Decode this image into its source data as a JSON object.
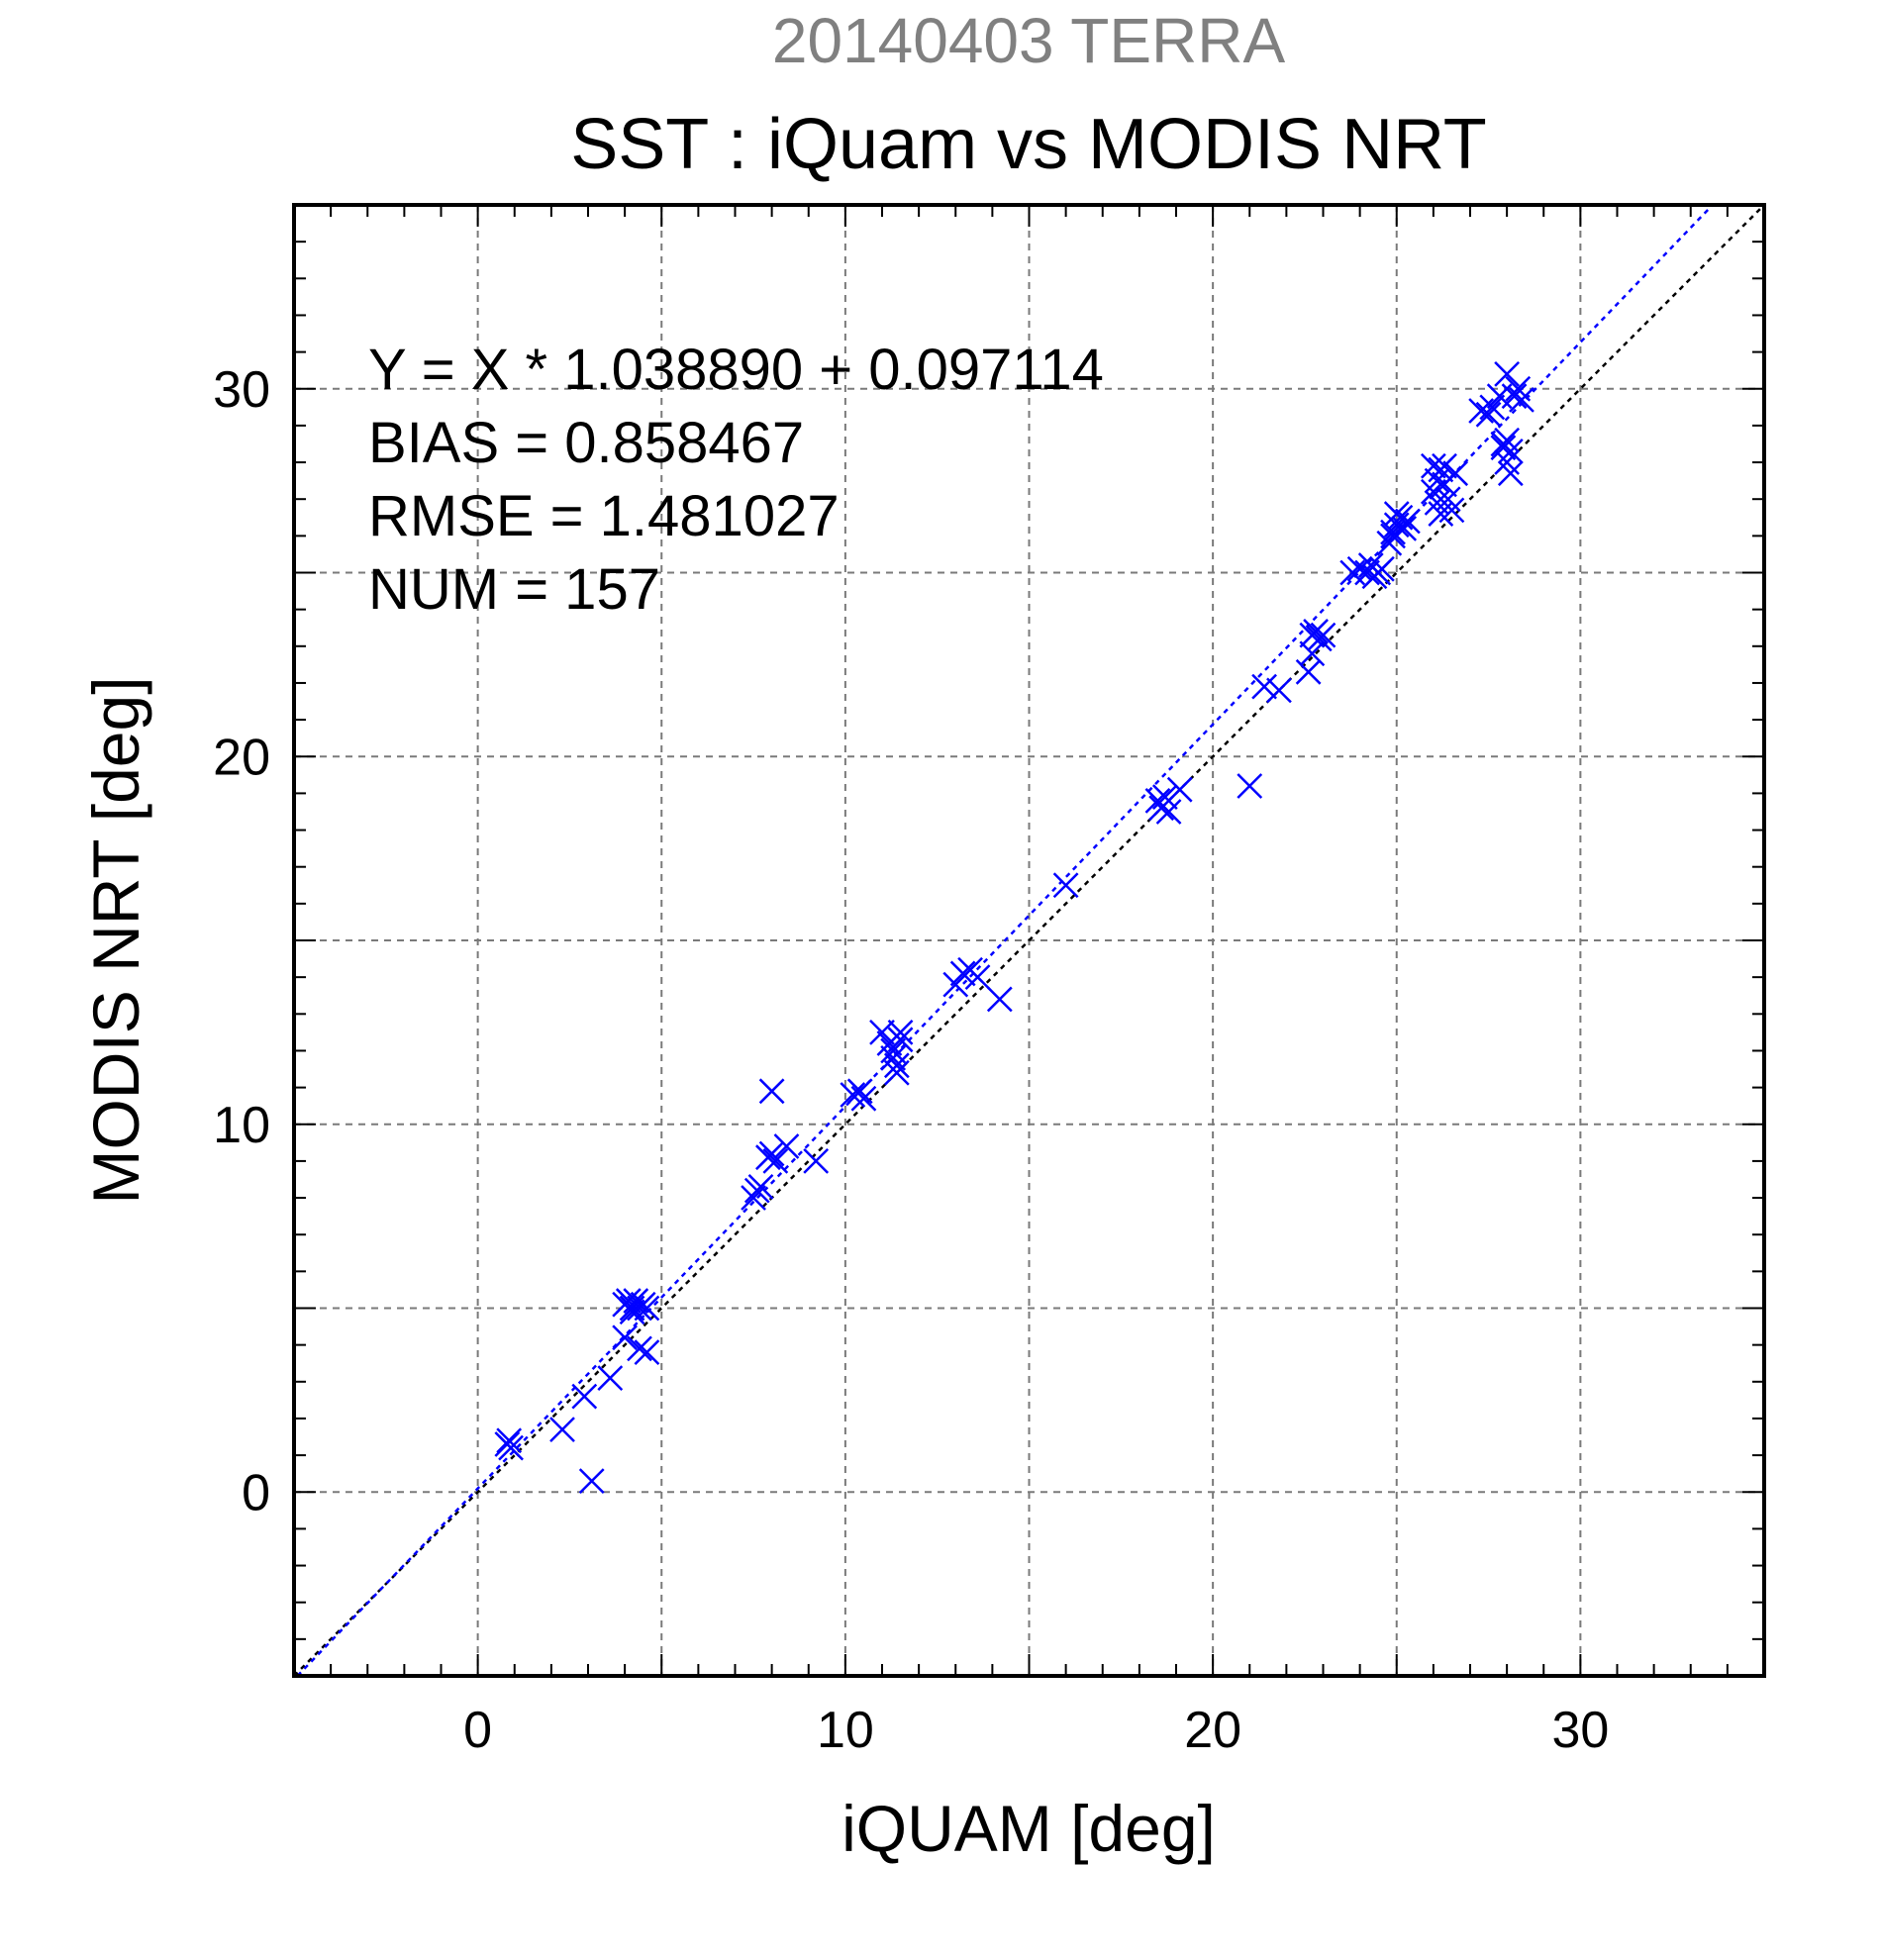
{
  "chart_data": {
    "type": "scatter",
    "title": "20140403 TERRA",
    "subtitle": "SST : iQuam vs MODIS NRT",
    "xlabel": "iQUAM [deg]",
    "ylabel": "MODIS NRT [deg]",
    "xlim": [
      -5,
      35
    ],
    "ylim": [
      -5,
      35
    ],
    "xticks": [
      0,
      10,
      20,
      30
    ],
    "yticks": [
      0,
      10,
      20,
      30
    ],
    "x_tick_labels": [
      "0",
      "10",
      "20",
      "30"
    ],
    "y_tick_labels": [
      "0",
      "10",
      "20",
      "30"
    ],
    "grid": true,
    "marker": "x",
    "colors": {
      "points": "#0000ff",
      "fit_line": "#0000ff",
      "identity_line": "#000000"
    },
    "annotations": [
      "Y = X * 1.038890 + 0.097114",
      "BIAS = 0.858467",
      "RMSE = 1.481027",
      "NUM = 157"
    ],
    "fit": {
      "slope": 1.03889,
      "intercept": 0.097114
    },
    "identity": {
      "slope": 1,
      "intercept": 0
    },
    "points": [
      [
        0.8,
        1.3
      ],
      [
        0.9,
        1.2
      ],
      [
        0.85,
        1.4
      ],
      [
        2.3,
        1.7
      ],
      [
        2.9,
        2.6
      ],
      [
        3.1,
        0.3
      ],
      [
        3.6,
        3.1
      ],
      [
        4.0,
        4.2
      ],
      [
        4.0,
        5.1
      ],
      [
        4.1,
        5.2
      ],
      [
        4.2,
        5.0
      ],
      [
        4.3,
        5.2
      ],
      [
        4.4,
        5.0
      ],
      [
        4.5,
        5.1
      ],
      [
        4.2,
        4.9
      ],
      [
        4.6,
        5.0
      ],
      [
        4.4,
        3.9
      ],
      [
        4.6,
        3.8
      ],
      [
        7.5,
        8.0
      ],
      [
        7.6,
        8.2
      ],
      [
        7.7,
        8.3
      ],
      [
        7.9,
        9.1
      ],
      [
        8.0,
        9.2
      ],
      [
        8.1,
        9.0
      ],
      [
        8.4,
        9.4
      ],
      [
        8.0,
        10.9
      ],
      [
        9.2,
        9.0
      ],
      [
        10.2,
        10.8
      ],
      [
        10.4,
        10.9
      ],
      [
        10.5,
        10.7
      ],
      [
        11.0,
        12.5
      ],
      [
        11.2,
        12.2
      ],
      [
        11.3,
        11.8
      ],
      [
        11.4,
        11.6
      ],
      [
        11.5,
        12.5
      ],
      [
        11.3,
        12.0
      ],
      [
        11.4,
        11.4
      ],
      [
        11.5,
        12.3
      ],
      [
        13.0,
        13.8
      ],
      [
        13.2,
        14.1
      ],
      [
        13.4,
        14.2
      ],
      [
        13.6,
        14.0
      ],
      [
        14.2,
        13.4
      ],
      [
        16.0,
        16.5
      ],
      [
        18.5,
        18.8
      ],
      [
        18.6,
        18.6
      ],
      [
        18.7,
        18.9
      ],
      [
        18.8,
        18.5
      ],
      [
        19.1,
        19.1
      ],
      [
        21.0,
        19.2
      ],
      [
        21.4,
        21.9
      ],
      [
        21.8,
        21.8
      ],
      [
        22.6,
        22.3
      ],
      [
        22.7,
        22.8
      ],
      [
        22.7,
        23.3
      ],
      [
        22.8,
        23.4
      ],
      [
        22.9,
        23.2
      ],
      [
        23.0,
        23.3
      ],
      [
        23.8,
        25.0
      ],
      [
        24.0,
        25.1
      ],
      [
        24.2,
        25.0
      ],
      [
        24.3,
        25.2
      ],
      [
        24.5,
        25.0
      ],
      [
        24.6,
        25.1
      ],
      [
        24.4,
        24.9
      ],
      [
        24.8,
        25.8
      ],
      [
        24.9,
        26.0
      ],
      [
        25.0,
        26.3
      ],
      [
        25.1,
        26.5
      ],
      [
        25.2,
        26.2
      ],
      [
        25.3,
        26.4
      ],
      [
        25.0,
        26.6
      ],
      [
        24.9,
        26.1
      ],
      [
        26.0,
        27.2
      ],
      [
        26.1,
        27.5
      ],
      [
        26.2,
        27.8
      ],
      [
        26.3,
        27.4
      ],
      [
        26.1,
        26.9
      ],
      [
        26.2,
        26.6
      ],
      [
        26.4,
        27.0
      ],
      [
        26.5,
        26.7
      ],
      [
        26.6,
        27.7
      ],
      [
        26.3,
        27.9
      ],
      [
        26.0,
        27.9
      ],
      [
        27.3,
        29.4
      ],
      [
        27.5,
        29.3
      ],
      [
        27.6,
        29.5
      ],
      [
        27.8,
        29.8
      ],
      [
        28.0,
        30.4
      ],
      [
        28.2,
        29.8
      ],
      [
        28.3,
        30.0
      ],
      [
        28.4,
        29.7
      ],
      [
        27.9,
        28.4
      ],
      [
        28.0,
        28.6
      ],
      [
        28.1,
        28.3
      ],
      [
        28.0,
        28.0
      ],
      [
        28.1,
        27.7
      ],
      [
        27.9,
        28.5
      ]
    ]
  }
}
